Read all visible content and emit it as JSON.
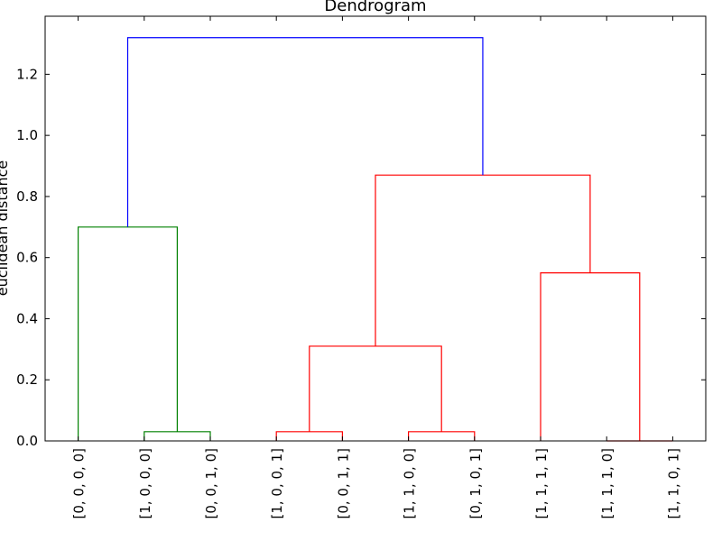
{
  "chart_data": {
    "type": "dendrogram",
    "title": "Dendrogram",
    "xlabel": "",
    "ylabel": "euclidean distance",
    "ylim": [
      0,
      1.39
    ],
    "yticks": [
      0.0,
      0.2,
      0.4,
      0.6,
      0.8,
      1.0,
      1.2
    ],
    "ytick_labels": [
      "0.0",
      "0.2",
      "0.4",
      "0.6",
      "0.8",
      "1.0",
      "1.2"
    ],
    "leaves": [
      "[0, 0, 0, 0]",
      "[1, 0, 0, 0]",
      "[0, 0, 1, 0]",
      "[1, 0, 0, 1]",
      "[0, 0, 1, 1]",
      "[1, 1, 0, 0]",
      "[0, 1, 0, 1]",
      "[1, 1, 1, 1]",
      "[1, 1, 1, 0]",
      "[1, 1, 0, 1]"
    ],
    "colors": {
      "root": "#0000ff",
      "cluster_1": "#008000",
      "cluster_2": "#ff0000"
    },
    "merges": [
      {
        "left": 1,
        "right": 2,
        "height": 0.03,
        "color": "#008000"
      },
      {
        "left": 0,
        "right": "1-2",
        "height": 0.7,
        "color": "#008000"
      },
      {
        "left": 3,
        "right": 4,
        "height": 0.03,
        "color": "#ff0000"
      },
      {
        "left": 5,
        "right": 6,
        "height": 0.03,
        "color": "#ff0000"
      },
      {
        "left": "3-4",
        "right": "5-6",
        "height": 0.31,
        "color": "#ff0000"
      },
      {
        "left": 8,
        "right": 9,
        "height": 0.0,
        "color": "#ff0000"
      },
      {
        "left": 7,
        "right": "8-9",
        "height": 0.55,
        "color": "#ff0000"
      },
      {
        "left": "3-6",
        "right": "7-9",
        "height": 0.87,
        "color": "#ff0000"
      },
      {
        "left": "0-2",
        "right": "3-9",
        "height": 1.32,
        "color": "#0000ff"
      }
    ],
    "grid": false,
    "legend": "none"
  }
}
